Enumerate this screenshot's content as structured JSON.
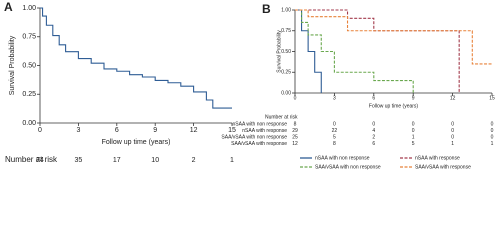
{
  "chart_data": [
    {
      "type": "line",
      "step": true,
      "panel": "A",
      "ylabel": "Survival Probability",
      "xlabel": "Follow up time (years)",
      "xlim": [
        0,
        15
      ],
      "xticks": [
        0,
        3,
        6,
        9,
        12,
        15
      ],
      "ylim": [
        0,
        1
      ],
      "yticks": [
        {
          "value": 0,
          "label": "0.00"
        },
        {
          "value": 0.25,
          "label": "0.25"
        },
        {
          "value": 0.5,
          "label": "0.50"
        },
        {
          "value": 0.75,
          "label": "0.75"
        },
        {
          "value": 1,
          "label": "1.00"
        }
      ],
      "color": "#2f5d95",
      "x": [
        0,
        0.2,
        0.2,
        0.5,
        0.5,
        1,
        1,
        1.5,
        1.5,
        2,
        2,
        3,
        3,
        4,
        4,
        5,
        5,
        6,
        6,
        7,
        7,
        8,
        8,
        9,
        9,
        10,
        10,
        11,
        11,
        12,
        12,
        13,
        13,
        13.5,
        13.5,
        15
      ],
      "values": [
        1,
        1,
        0.93,
        0.93,
        0.85,
        0.85,
        0.76,
        0.76,
        0.68,
        0.68,
        0.62,
        0.62,
        0.56,
        0.56,
        0.52,
        0.52,
        0.47,
        0.47,
        0.45,
        0.45,
        0.42,
        0.42,
        0.4,
        0.4,
        0.37,
        0.37,
        0.35,
        0.35,
        0.32,
        0.32,
        0.27,
        0.27,
        0.2,
        0.2,
        0.13,
        0.13
      ],
      "risk_label": "Number at risk",
      "at_risk": [
        74,
        35,
        17,
        10,
        2,
        1
      ]
    },
    {
      "type": "line",
      "step": true,
      "panel": "B",
      "ylabel": "Survival Probability",
      "xlabel": "Follow up time (years)",
      "xlim": [
        0,
        15
      ],
      "xticks": [
        0,
        3,
        6,
        9,
        12,
        15
      ],
      "ylim": [
        0,
        1
      ],
      "yticks": [
        {
          "value": 0,
          "label": "0.00"
        },
        {
          "value": 0.25,
          "label": "0.25"
        },
        {
          "value": 0.5,
          "label": "0.50"
        },
        {
          "value": 0.75,
          "label": "0.75"
        },
        {
          "value": 1,
          "label": "1.00"
        }
      ],
      "risk_label": "Number at risk",
      "series": [
        {
          "name": "nSAA with non response",
          "color": "#2f5d95",
          "dash": false,
          "x": [
            0,
            0.5,
            0.5,
            1,
            1,
            1.5,
            1.5,
            2,
            2
          ],
          "values": [
            1,
            1,
            0.75,
            0.75,
            0.5,
            0.5,
            0.25,
            0.25,
            0
          ],
          "at_risk": [
            8,
            0,
            0,
            0,
            0,
            0
          ]
        },
        {
          "name": "nSAA with response",
          "color": "#a33a4c",
          "dash": true,
          "x": [
            0,
            4,
            4,
            6,
            6,
            12.5,
            12.5
          ],
          "values": [
            1,
            1,
            0.9,
            0.9,
            0.75,
            0.75,
            0
          ],
          "at_risk": [
            29,
            22,
            4,
            0,
            0,
            0
          ]
        },
        {
          "name": "SAA/vSAA with non response",
          "color": "#6aa84f",
          "dash": true,
          "x": [
            0,
            0.5,
            0.5,
            1,
            1,
            2,
            2,
            3,
            3,
            6,
            6,
            9,
            9
          ],
          "values": [
            1,
            1,
            0.85,
            0.85,
            0.7,
            0.7,
            0.5,
            0.5,
            0.25,
            0.25,
            0.15,
            0.15,
            0
          ],
          "at_risk": [
            25,
            5,
            2,
            1,
            0,
            0
          ]
        },
        {
          "name": "SAA/vSAA with response",
          "color": "#e8823a",
          "dash": true,
          "x": [
            0,
            1,
            1,
            4,
            4,
            13.5,
            13.5,
            15
          ],
          "values": [
            1,
            1,
            0.92,
            0.92,
            0.75,
            0.75,
            0.35,
            0.35
          ],
          "at_risk": [
            12,
            8,
            6,
            5,
            1,
            1
          ]
        }
      ]
    }
  ]
}
